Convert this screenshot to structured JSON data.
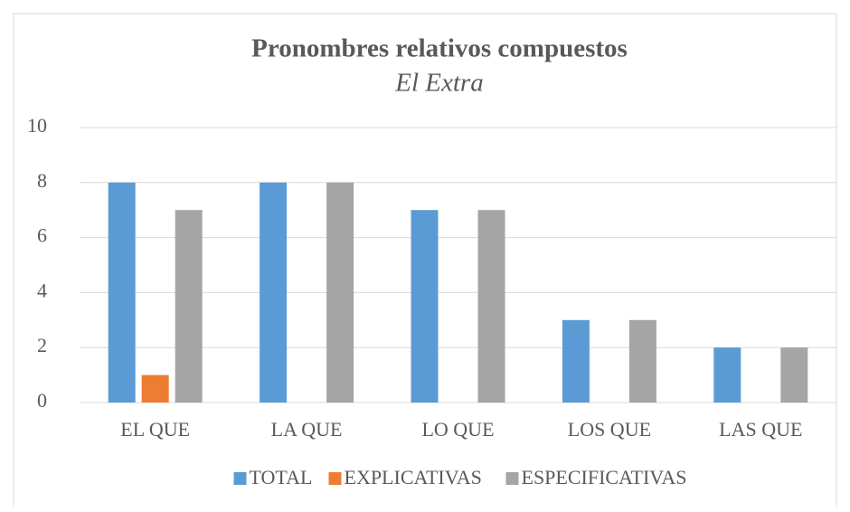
{
  "chart_data": {
    "type": "bar",
    "title": "Pronombres relativos compuestos",
    "subtitle": "El Extra",
    "categories": [
      "EL QUE",
      "LA QUE",
      "LO QUE",
      "LOS QUE",
      "LAS QUE"
    ],
    "series": [
      {
        "name": "TOTAL",
        "color": "#5b9bd5",
        "values": [
          8,
          8,
          7,
          3,
          2
        ]
      },
      {
        "name": "EXPLICATIVAS",
        "color": "#ed7d31",
        "values": [
          1,
          0,
          0,
          0,
          0
        ]
      },
      {
        "name": "ESPECIFICATIVAS",
        "color": "#a5a5a5",
        "values": [
          7,
          8,
          7,
          3,
          2
        ]
      }
    ],
    "ylim": [
      0,
      10
    ],
    "yticks": [
      0,
      2,
      4,
      6,
      8,
      10
    ],
    "grid": true,
    "legend": "bottom"
  }
}
